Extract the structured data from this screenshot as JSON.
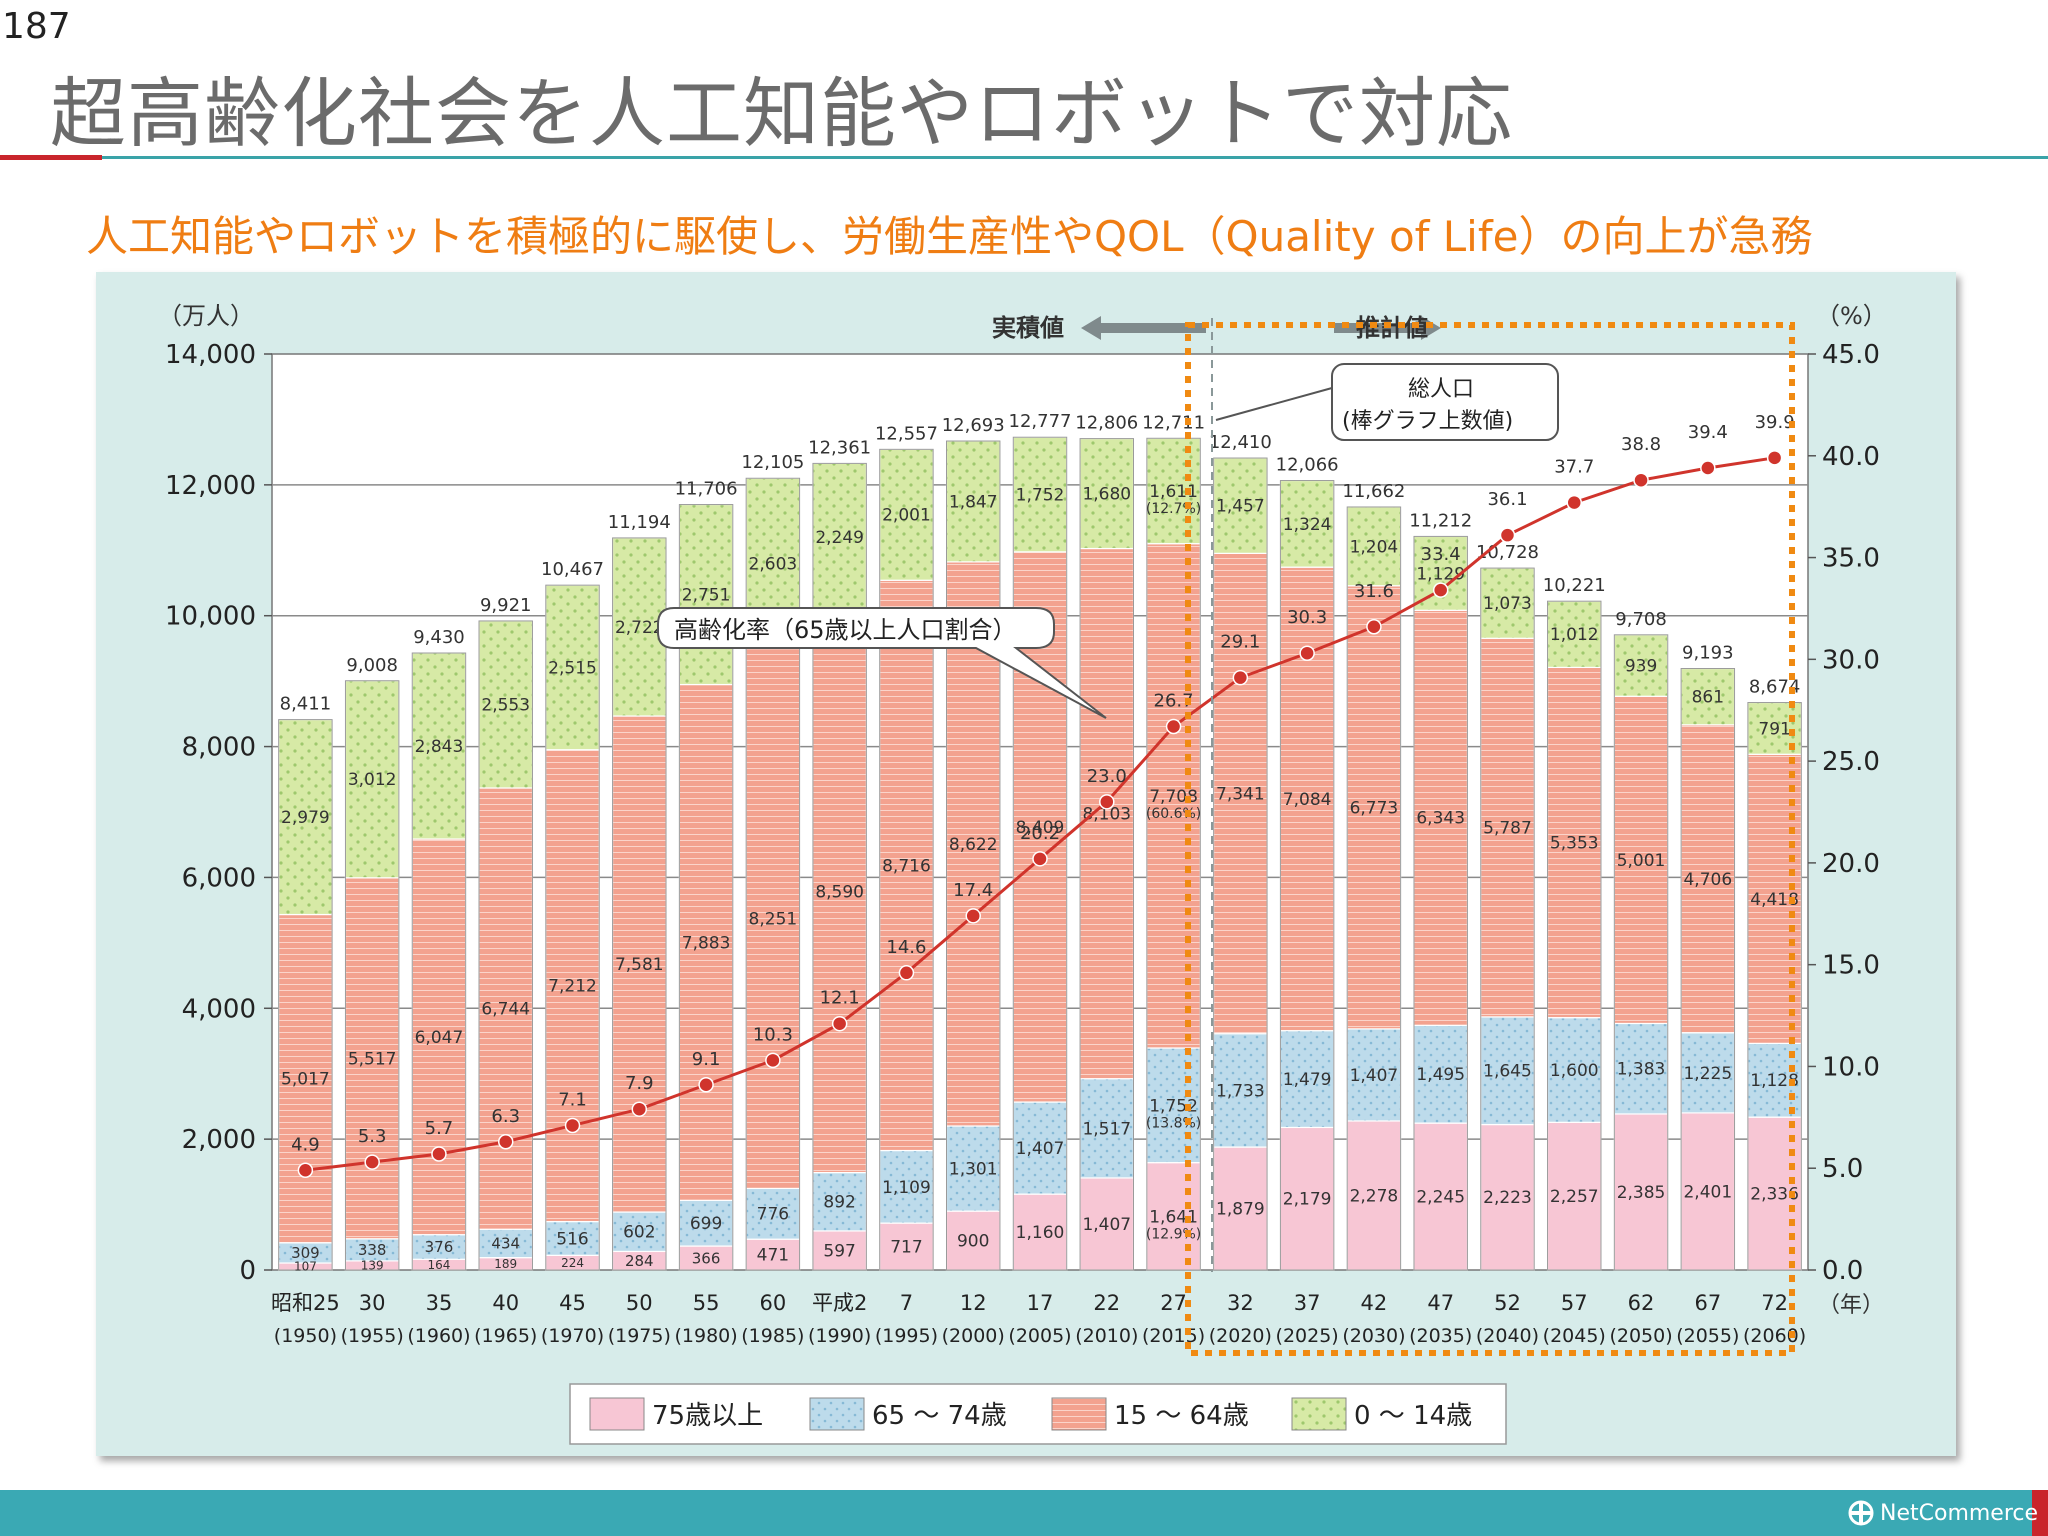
{
  "page": {
    "page_number": "187",
    "title": "超高齢化社会を人工知能やロボットで対応",
    "subtitle": "人工知能やロボットを積極的に駆使し、労働生産性やQOL（Quality of Life）の向上が急務",
    "brand": "NetCommerce",
    "colors": {
      "title": "#6b6b6b",
      "subtitle": "#ef7d13",
      "accent": "#3aa9b4",
      "red": "#c9252c"
    }
  },
  "chart_data": {
    "type": "bar",
    "stacked": true,
    "y_left_label": "（万人）",
    "y_right_label": "（%）",
    "y_left_ticks": [
      "14,000",
      "12,000",
      "10,000",
      "8,000",
      "6,000",
      "4,000",
      "2,000",
      "0"
    ],
    "y_right_ticks": [
      "45.0",
      "40.0",
      "35.0",
      "30.0",
      "25.0",
      "20.0",
      "15.0",
      "10.0",
      "5.0",
      "0.0"
    ],
    "ylim_left": [
      0,
      14000
    ],
    "ylim_right": [
      0,
      45
    ],
    "x_unit": "（年）",
    "x_labels": [
      "昭和25",
      "30",
      "35",
      "40",
      "45",
      "50",
      "55",
      "60",
      "平成2",
      "7",
      "12",
      "17",
      "22",
      "27",
      "32",
      "37",
      "42",
      "47",
      "52",
      "57",
      "62",
      "67",
      "72"
    ],
    "x_sublabels": [
      "(1950)",
      "(1955)",
      "(1960)",
      "(1965)",
      "(1970)",
      "(1975)",
      "(1980)",
      "(1985)",
      "(1990)",
      "(1995)",
      "(2000)",
      "(2005)",
      "(2010)",
      "(2015)",
      "(2020)",
      "(2025)",
      "(2030)",
      "(2035)",
      "(2040)",
      "(2045)",
      "(2050)",
      "(2055)",
      "(2060)"
    ],
    "series": [
      {
        "name": "75歳以上",
        "color": "#f6c3d2",
        "values": [
          107,
          139,
          164,
          189,
          224,
          284,
          366,
          471,
          597,
          717,
          900,
          1160,
          1407,
          1641,
          1879,
          2179,
          2278,
          2245,
          2223,
          2257,
          2385,
          2401,
          2336
        ],
        "labels": [
          "107",
          "139",
          "164",
          "189",
          "224",
          "284",
          "366",
          "471",
          "597",
          "717",
          "900",
          "1,160",
          "1,407",
          "1,641",
          "1,879",
          "2,179",
          "2,278",
          "2,245",
          "2,223",
          "2,257",
          "2,385",
          "2,401",
          "2,336"
        ]
      },
      {
        "name": "65〜74歳",
        "color": "#bcdcec",
        "values": [
          309,
          338,
          376,
          434,
          516,
          602,
          699,
          776,
          892,
          1109,
          1301,
          1407,
          1517,
          1752,
          1733,
          1479,
          1407,
          1495,
          1645,
          1600,
          1383,
          1225,
          1128
        ],
        "labels": [
          "309",
          "338",
          "376",
          "434",
          "516",
          "602",
          "699",
          "776",
          "892",
          "1,109",
          "1,301",
          "1,407",
          "1,517",
          "1,752",
          "1,733",
          "1,479",
          "1,407",
          "1,495",
          "1,645",
          "1,600",
          "1,383",
          "1,225",
          "1,128"
        ]
      },
      {
        "name": "15〜64歳",
        "color": "#f3a090",
        "values": [
          5017,
          5517,
          6047,
          6744,
          7212,
          7581,
          7883,
          8251,
          8590,
          8716,
          8622,
          8409,
          8103,
          7708,
          7341,
          7084,
          6773,
          6343,
          5787,
          5353,
          5001,
          4706,
          4418
        ],
        "labels": [
          "5,017",
          "5,517",
          "6,047",
          "6,744",
          "7,212",
          "7,581",
          "7,883",
          "8,251",
          "8,590",
          "8,716",
          "8,622",
          "8,409",
          "8,103",
          "7,708",
          "7,341",
          "7,084",
          "6,773",
          "6,343",
          "5,787",
          "5,353",
          "5,001",
          "4,706",
          "4,418"
        ]
      },
      {
        "name": "0〜14歳",
        "color": "#d5e8a8",
        "values": [
          2979,
          3012,
          2843,
          2553,
          2515,
          2722,
          2751,
          2603,
          2249,
          2001,
          1847,
          1752,
          1680,
          1611,
          1457,
          1324,
          1204,
          1129,
          1073,
          1012,
          939,
          861,
          791
        ],
        "labels": [
          "2,979",
          "3,012",
          "2,843",
          "2,553",
          "2,515",
          "2,722",
          "2,751",
          "2,603",
          "2,249",
          "2,001",
          "1,847",
          "1,752",
          "1,680",
          "1,611",
          "1,457",
          "1,324",
          "1,204",
          "1,129",
          "1,073",
          "1,012",
          "939",
          "861",
          "791"
        ]
      }
    ],
    "totals": [
      8411,
      9008,
      9430,
      9921,
      10467,
      11194,
      11706,
      12105,
      12361,
      12557,
      12693,
      12777,
      12806,
      12711,
      12410,
      12066,
      11662,
      11212,
      10728,
      10221,
      9708,
      9193,
      8674
    ],
    "total_labels": [
      "8,411",
      "9,008",
      "9,430",
      "9,921",
      "10,467",
      "11,194",
      "11,706",
      "12,105",
      "12,361",
      "12,557",
      "12,693",
      "12,777",
      "12,806",
      "12,711",
      "12,410",
      "12,066",
      "11,662",
      "11,212",
      "10,728",
      "10,221",
      "9,708",
      "9,193",
      "8,674"
    ],
    "line_series": {
      "name": "高齢化率（65歳以上人口割合）",
      "axis": "right",
      "color": "#d0342c",
      "values": [
        4.9,
        5.3,
        5.7,
        6.3,
        7.1,
        7.9,
        9.1,
        10.3,
        12.1,
        14.6,
        17.4,
        20.2,
        23.0,
        26.7,
        29.1,
        30.3,
        31.6,
        33.4,
        36.1,
        37.7,
        38.8,
        39.4,
        39.9
      ],
      "labels": [
        "4.9",
        "5.3",
        "5.7",
        "6.3",
        "7.1",
        "7.9",
        "9.1",
        "10.3",
        "12.1",
        "14.6",
        "17.4",
        "20.2",
        "23.0",
        "26.7",
        "29.1",
        "30.3",
        "31.6",
        "33.4",
        "36.1",
        "37.7",
        "38.8",
        "39.4",
        "39.9"
      ]
    },
    "percent_annotations_2015": [
      "(12.9%)",
      "(13.8%)",
      "(60.6%)",
      "(12.7%)"
    ],
    "annotations": {
      "actual": "実積値",
      "projected": "推計値",
      "total_population_line1": "総人口",
      "total_population_line2": "(棒グラフ上数値)",
      "aging_rate_callout": "高齢化率（65歳以上人口割合）"
    },
    "legend": {
      "position": "bottom-center",
      "items": [
        "75歳以上",
        "65 ～ 74歳",
        "15 ～ 64歳",
        "0 ～ 14歳"
      ]
    },
    "grid": true
  }
}
